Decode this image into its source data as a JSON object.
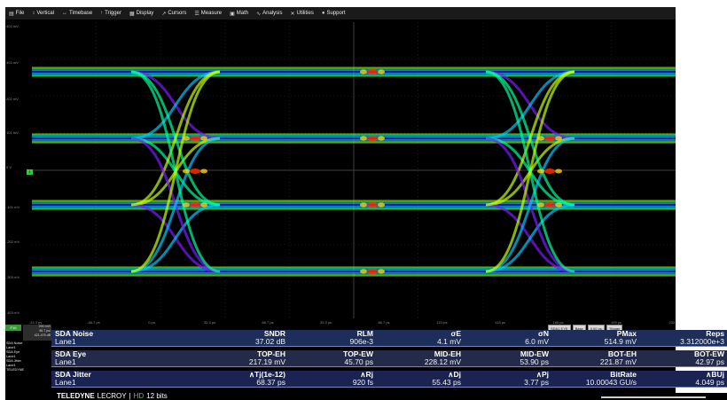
{
  "menu": [
    {
      "icon": "file-icon",
      "glyph": "▤",
      "label": "File"
    },
    {
      "icon": "vertical-icon",
      "glyph": "↕",
      "label": "Vertical"
    },
    {
      "icon": "timebase-icon",
      "glyph": "↔",
      "label": "Timebase"
    },
    {
      "icon": "trigger-icon",
      "glyph": "↑",
      "label": "Trigger"
    },
    {
      "icon": "display-icon",
      "glyph": "▦",
      "label": "Display"
    },
    {
      "icon": "cursors-icon",
      "glyph": "↗",
      "label": "Cursors"
    },
    {
      "icon": "measure-icon",
      "glyph": "☰",
      "label": "Measure"
    },
    {
      "icon": "math-icon",
      "glyph": "▣",
      "label": "Math"
    },
    {
      "icon": "analysis-icon",
      "glyph": "∿",
      "label": "Analysis"
    },
    {
      "icon": "utilities-icon",
      "glyph": "✕",
      "label": "Utilities"
    },
    {
      "icon": "support-icon",
      "glyph": "●",
      "label": "Support"
    }
  ],
  "y_labels": [
    "403 mV",
    "303 mV",
    "202 mV",
    "101 mV",
    "0 V",
    "-101 mV",
    "-202 mV",
    "-303 mV",
    "-403 mV"
  ],
  "x_labels": [
    "-33.3 ps",
    "-66.7 ps",
    "0 ps",
    "33.3 ps",
    "66.7 ps",
    "33.3 ps",
    "66.7 ps",
    "101 ps",
    "133 ps",
    "166 ps",
    "199 ps",
    "233 ps"
  ],
  "channel_marker": "1",
  "trigger_bar": [
    "SDA1 EYE",
    "Base",
    "0.00 ps",
    "Trigger"
  ],
  "side_panel": {
    "tag": "F10",
    "box": [
      "200 mV/",
      "96.7 ps/",
      "421.475 dB"
    ],
    "list": [
      "SDA Noise",
      "Lane1",
      "SDA Eye",
      "Lane1",
      "SDA Jitter",
      "Lane1",
      "TELEDYNE"
    ]
  },
  "table": [
    {
      "group": "SDA Noise",
      "lane": "Lane1",
      "headers": [
        "SNDR",
        "RLM",
        "σE",
        "σN",
        "PMax",
        "Reps"
      ],
      "values": [
        "37.02 dB",
        "906e-3",
        "4.1 mV",
        "6.0 mV",
        "514.9 mV",
        "3.312000e+3"
      ]
    },
    {
      "group": "SDA Eye",
      "lane": "Lane1",
      "headers": [
        "TOP-EH",
        "TOP-EW",
        "MID-EH",
        "MID-EW",
        "BOT-EH",
        "BOT-EW"
      ],
      "values": [
        "217.19 mV",
        "45.70 ps",
        "228.12 mV",
        "53.90 ps",
        "221.87 mV",
        "42.97 ps"
      ]
    },
    {
      "group": "SDA Jitter",
      "lane": "Lane1",
      "headers": [
        "∧Tj(1e-12)",
        "∧Rj",
        "∧Dj",
        "∧Pj",
        "BitRate",
        "∧BUj"
      ],
      "values": [
        "68.37 ps",
        "920 fs",
        "55.43 ps",
        "3.77 ps",
        "10.00043 GU/s",
        "4.049 ps"
      ]
    }
  ],
  "footer": {
    "brand": "TELEDYNE",
    "brand2": "LECROY",
    "sep": "|",
    "hd": "HD",
    "bits": "12 bits"
  },
  "colors": {
    "accent_green": "#39c839",
    "table_bg": "#1e2e5a",
    "eye_hot": "#ff2a00",
    "eye_cool": "#7a1aff"
  }
}
